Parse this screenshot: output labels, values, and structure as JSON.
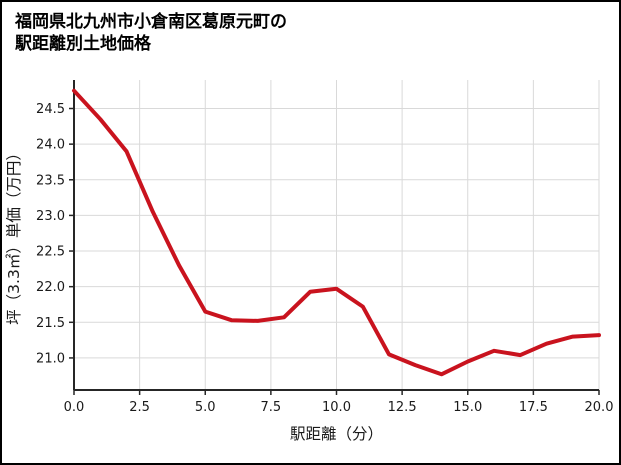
{
  "page": {
    "title_lines": [
      "福岡県北九州市小倉南区葛原元町の",
      "駅距離別土地価格"
    ]
  },
  "chart_data": {
    "type": "line",
    "title": "福岡県北九州市小倉南区葛原元町の駅距離別土地価格",
    "xlabel": "駅距離（分）",
    "ylabel": "坪（3.3㎡）単価（万円）",
    "x": [
      0,
      1,
      2,
      3,
      4,
      5,
      6,
      7,
      8,
      9,
      10,
      11,
      12,
      13,
      14,
      15,
      16,
      17,
      18,
      19,
      20
    ],
    "y": [
      24.75,
      24.35,
      23.9,
      23.05,
      22.3,
      21.65,
      21.53,
      21.52,
      21.57,
      21.93,
      21.97,
      21.72,
      21.05,
      20.9,
      20.77,
      20.95,
      21.1,
      21.04,
      21.2,
      21.3,
      21.32
    ],
    "xlim": [
      0,
      20
    ],
    "ylim": [
      20.55,
      24.9
    ],
    "xticks": [
      0,
      2.5,
      5,
      7.5,
      10,
      12.5,
      15,
      17.5,
      20
    ],
    "xtick_labels": [
      "0.0",
      "2.5",
      "5.0",
      "7.5",
      "10.0",
      "12.5",
      "15.0",
      "17.5",
      "20.0"
    ],
    "yticks": [
      21,
      21.5,
      22,
      22.5,
      23,
      23.5,
      24,
      24.5
    ],
    "ytick_labels": [
      "21.0",
      "21.5",
      "22.0",
      "22.5",
      "23.0",
      "23.5",
      "24.0",
      "24.5"
    ],
    "grid": true,
    "legend": "none",
    "colors": {
      "line": "#c9131e",
      "grid": "#d9d9d9",
      "axis": "#262626",
      "text": "#1a1a1a"
    }
  }
}
